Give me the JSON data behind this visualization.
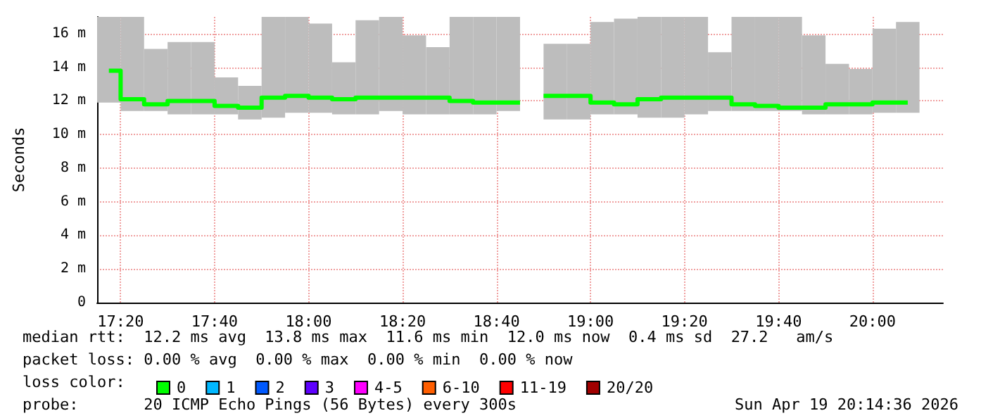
{
  "chart_data": {
    "type": "step",
    "ylabel": "Seconds",
    "x": [
      17.2917,
      17.375,
      17.4583,
      17.5417,
      17.625,
      17.7083,
      17.7917,
      17.875,
      17.9583,
      18.0417,
      18.125,
      18.2083,
      18.2917,
      18.375,
      18.4583,
      18.5417,
      18.625,
      18.7083,
      18.7917,
      18.875,
      18.9583,
      19.0417,
      19.125,
      19.2083,
      19.2917,
      19.375,
      19.4583,
      19.5417,
      19.625,
      19.7083,
      19.7917,
      19.875,
      19.9583,
      20.0417,
      20.125
    ],
    "series": [
      {
        "type": "bar",
        "color": "#bdbdbd",
        "base": [
          11.9,
          11.4,
          11.4,
          11.2,
          11.2,
          11.2,
          10.9,
          11.0,
          11.3,
          11.3,
          11.2,
          11.2,
          11.4,
          11.2,
          11.2,
          11.2,
          11.2,
          11.4,
          null,
          10.9,
          10.9,
          11.2,
          11.2,
          11.0,
          11.0,
          11.2,
          11.4,
          11.4,
          11.4,
          11.4,
          11.2,
          11.2,
          11.2,
          11.3,
          11.3
        ],
        "values": [
          5.1,
          5.6,
          3.7,
          4.3,
          4.3,
          2.2,
          2.0,
          6.0,
          5.7,
          5.3,
          3.1,
          5.6,
          5.6,
          4.7,
          4.0,
          5.8,
          5.8,
          5.6,
          null,
          4.5,
          4.5,
          5.5,
          5.7,
          6.0,
          6.0,
          5.8,
          3.5,
          5.6,
          5.6,
          5.6,
          4.7,
          3.0,
          2.7,
          5.0,
          5.4
        ]
      },
      {
        "name": "0",
        "color": "#00ff00",
        "values": [
          13.8,
          12.1,
          11.8,
          12.0,
          12.0,
          11.7,
          11.6,
          12.2,
          12.3,
          12.2,
          12.1,
          12.2,
          12.2,
          12.2,
          12.2,
          12.0,
          11.9,
          11.9,
          null,
          12.3,
          12.3,
          11.9,
          11.8,
          12.1,
          12.2,
          12.2,
          12.2,
          11.8,
          11.7,
          11.6,
          11.6,
          11.8,
          11.8,
          11.9,
          11.9
        ]
      },
      {
        "name": "1",
        "color": "#00b8ff",
        "values": [
          null,
          null,
          null,
          null,
          null,
          null,
          null,
          null,
          null,
          null,
          null,
          null,
          null,
          null,
          null,
          null,
          null,
          null,
          null,
          null,
          null,
          null,
          null,
          null,
          null,
          null,
          null,
          null,
          null,
          null,
          null,
          null,
          null,
          null,
          null
        ]
      },
      {
        "name": "2",
        "color": "#0059ff",
        "values": [
          null,
          null,
          null,
          null,
          null,
          null,
          null,
          null,
          null,
          null,
          null,
          null,
          null,
          null,
          null,
          null,
          null,
          null,
          null,
          null,
          null,
          null,
          null,
          null,
          null,
          null,
          null,
          null,
          null,
          null,
          null,
          null,
          null,
          null,
          null
        ]
      },
      {
        "name": "3",
        "color": "#5e00ff",
        "values": [
          null,
          null,
          null,
          null,
          null,
          null,
          null,
          null,
          null,
          null,
          null,
          null,
          null,
          null,
          null,
          null,
          null,
          null,
          null,
          null,
          null,
          null,
          null,
          null,
          null,
          null,
          null,
          null,
          null,
          null,
          null,
          null,
          null,
          null,
          null
        ]
      },
      {
        "name": "4-5",
        "color": "#ff00ff",
        "values": [
          null,
          null,
          null,
          null,
          null,
          null,
          null,
          null,
          null,
          null,
          null,
          null,
          null,
          null,
          null,
          null,
          null,
          null,
          null,
          null,
          null,
          null,
          null,
          null,
          null,
          null,
          null,
          null,
          null,
          null,
          null,
          null,
          null,
          null,
          null
        ]
      },
      {
        "name": "6-10",
        "color": "#ff5e00",
        "values": [
          null,
          null,
          null,
          null,
          null,
          null,
          null,
          null,
          null,
          null,
          null,
          null,
          null,
          null,
          null,
          null,
          null,
          null,
          null,
          null,
          null,
          null,
          null,
          null,
          null,
          null,
          null,
          null,
          null,
          null,
          null,
          null,
          null,
          null,
          null
        ]
      },
      {
        "name": "11-19",
        "color": "#ff0000",
        "values": [
          null,
          null,
          null,
          null,
          null,
          null,
          null,
          null,
          null,
          null,
          null,
          null,
          null,
          null,
          null,
          null,
          null,
          null,
          null,
          null,
          null,
          null,
          null,
          null,
          null,
          null,
          null,
          null,
          null,
          null,
          null,
          null,
          null,
          null,
          null
        ]
      },
      {
        "name": "20/20",
        "color": "#a10000",
        "values": [
          null,
          null,
          null,
          null,
          null,
          null,
          null,
          null,
          null,
          null,
          null,
          null,
          null,
          null,
          null,
          null,
          null,
          null,
          null,
          null,
          null,
          null,
          null,
          null,
          null,
          null,
          null,
          null,
          null,
          null,
          null,
          null,
          null,
          null,
          null
        ]
      }
    ],
    "xlim": [
      17.25,
      20.25
    ],
    "xticks": [
      {
        "value": 17.3333,
        "label": "17:20"
      },
      {
        "value": 17.6667,
        "label": "17:40"
      },
      {
        "value": 18,
        "label": "18:00"
      },
      {
        "value": 18.3333,
        "label": "18:20"
      },
      {
        "value": 18.6667,
        "label": "18:40"
      },
      {
        "value": 19,
        "label": "19:00"
      },
      {
        "value": 19.3333,
        "label": "19:20"
      },
      {
        "value": 19.6667,
        "label": "19:40"
      },
      {
        "value": 20,
        "label": "20:00"
      }
    ],
    "ylim": [
      0,
      17
    ],
    "yticks": [
      0,
      {
        "value": 2,
        "label": "2 m"
      },
      {
        "value": 4,
        "label": "4 m"
      },
      {
        "value": 6,
        "label": "6 m"
      },
      {
        "value": 8,
        "label": "8 m"
      },
      {
        "value": 10,
        "label": "10 m"
      },
      {
        "value": 12,
        "label": "12 m"
      },
      {
        "value": 14,
        "label": "14 m"
      },
      {
        "value": 16,
        "label": "16 m"
      }
    ],
    "grid": true,
    "marker": "none",
    "legend": "bottom",
    "legend_title": "loss color:",
    "annotations": [
      "median rtt:  12.2 ms avg  13.8 ms max  11.6 ms min  12.0 ms now  0.4 ms sd  27.2   am/s",
      "packet loss: 0.00 % avg  0.00 % max  0.00 % min  0.00 % now",
      "probe:       20 ICMP Echo Pings (56 Bytes) every 300s",
      "Sun Apr 19 20:14:36 2026"
    ]
  }
}
